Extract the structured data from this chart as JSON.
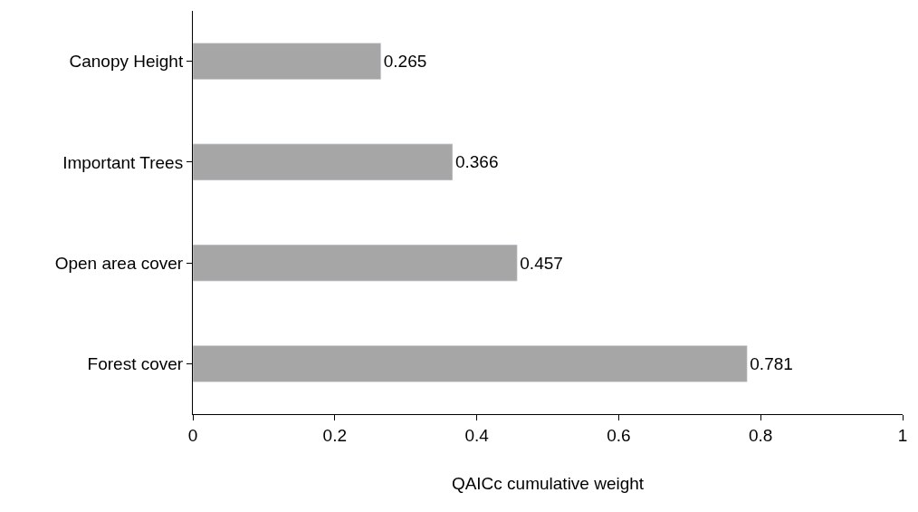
{
  "chart_data": {
    "type": "bar",
    "orientation": "horizontal",
    "xlabel": "QAICc cumulative weight",
    "categories": [
      "Canopy Height",
      "Important Trees",
      "Open area cover",
      "Forest cover"
    ],
    "values": [
      0.265,
      0.366,
      0.457,
      0.781
    ],
    "color": "#a6a6a6",
    "xlim": [
      0,
      1
    ],
    "xticks": [
      0,
      0.2,
      0.4,
      0.6,
      0.8,
      1
    ],
    "data_labels": true
  }
}
